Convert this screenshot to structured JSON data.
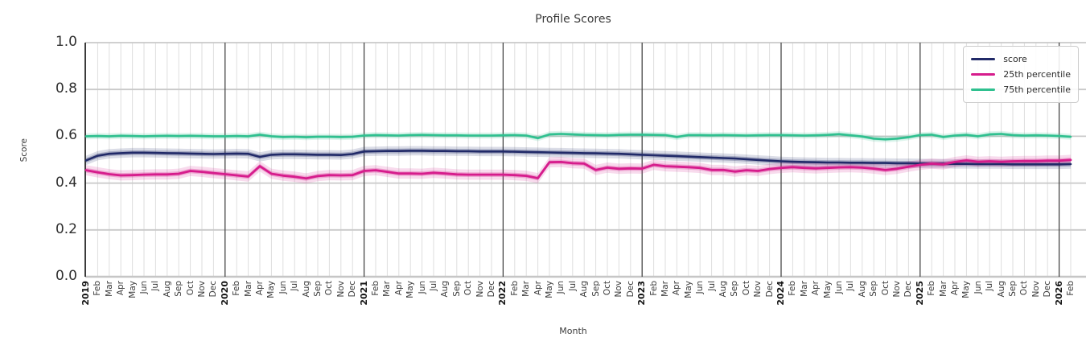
{
  "chart_data": {
    "type": "line",
    "title": "Profile Scores",
    "xlabel": "Month",
    "ylabel": "Score",
    "ylim": [
      0.0,
      1.0
    ],
    "ytick_labels": [
      "0.0",
      "0.2",
      "0.4",
      "0.6",
      "0.8",
      "1.0"
    ],
    "ytick_values": [
      0.0,
      0.2,
      0.4,
      0.6,
      0.8,
      1.0
    ],
    "grid": true,
    "legend_position": "upper right",
    "x_tick_labels": [
      "2019",
      "Feb",
      "Mar",
      "Apr",
      "May",
      "Jun",
      "Jul",
      "Aug",
      "Sep",
      "Oct",
      "Nov",
      "Dec",
      "2020",
      "Feb",
      "Mar",
      "Apr",
      "May",
      "Jun",
      "Jul",
      "Aug",
      "Sep",
      "Oct",
      "Nov",
      "Dec",
      "2021",
      "Feb",
      "Mar",
      "Apr",
      "May",
      "Jun",
      "Jul",
      "Aug",
      "Sep",
      "Oct",
      "Nov",
      "Dec",
      "2022",
      "Feb",
      "Mar",
      "Apr",
      "May",
      "Jun",
      "Jul",
      "Aug",
      "Sep",
      "Oct",
      "Nov",
      "Dec",
      "2023",
      "Feb",
      "Mar",
      "Apr",
      "May",
      "Jun",
      "Jul",
      "Aug",
      "Sep",
      "Oct",
      "Nov",
      "Dec",
      "2024",
      "Feb",
      "Mar",
      "Apr",
      "May",
      "Jun",
      "Jul",
      "Aug",
      "Sep",
      "Oct",
      "Nov",
      "Dec",
      "2025",
      "Feb",
      "Mar",
      "Apr",
      "May",
      "Jun",
      "Jul",
      "Aug",
      "Sep",
      "Oct",
      "Nov",
      "Dec",
      "2026",
      "Feb"
    ],
    "series": [
      {
        "name": "score",
        "color": "#212a68",
        "line_width": 2.6,
        "band_inner": 0.01,
        "band_outer": 0.02,
        "values": [
          0.497,
          0.517,
          0.525,
          0.528,
          0.53,
          0.53,
          0.529,
          0.528,
          0.527,
          0.526,
          0.525,
          0.524,
          0.525,
          0.526,
          0.525,
          0.512,
          0.521,
          0.523,
          0.523,
          0.522,
          0.521,
          0.521,
          0.52,
          0.524,
          0.535,
          0.536,
          0.537,
          0.537,
          0.538,
          0.538,
          0.537,
          0.537,
          0.536,
          0.536,
          0.535,
          0.535,
          0.535,
          0.534,
          0.533,
          0.532,
          0.531,
          0.53,
          0.529,
          0.528,
          0.527,
          0.526,
          0.525,
          0.523,
          0.521,
          0.519,
          0.517,
          0.515,
          0.513,
          0.511,
          0.509,
          0.507,
          0.505,
          0.502,
          0.499,
          0.496,
          0.493,
          0.491,
          0.49,
          0.489,
          0.488,
          0.488,
          0.487,
          0.487,
          0.486,
          0.486,
          0.485,
          0.485,
          0.484,
          0.483,
          0.483,
          0.482,
          0.482,
          0.481,
          0.481,
          0.481,
          0.48,
          0.48,
          0.48,
          0.48,
          0.48,
          0.481
        ]
      },
      {
        "name": "25th percentile",
        "color": "#d61c8c",
        "line_width": 2.8,
        "band_inner": 0.01,
        "band_outer": 0.022,
        "values": [
          0.455,
          0.446,
          0.438,
          0.433,
          0.434,
          0.436,
          0.437,
          0.437,
          0.44,
          0.452,
          0.448,
          0.443,
          0.438,
          0.433,
          0.428,
          0.472,
          0.44,
          0.432,
          0.427,
          0.42,
          0.43,
          0.434,
          0.433,
          0.434,
          0.452,
          0.455,
          0.448,
          0.441,
          0.441,
          0.44,
          0.444,
          0.441,
          0.437,
          0.436,
          0.436,
          0.436,
          0.436,
          0.434,
          0.431,
          0.421,
          0.489,
          0.49,
          0.485,
          0.483,
          0.456,
          0.466,
          0.461,
          0.463,
          0.462,
          0.478,
          0.472,
          0.47,
          0.468,
          0.465,
          0.456,
          0.456,
          0.449,
          0.455,
          0.452,
          0.46,
          0.465,
          0.468,
          0.465,
          0.463,
          0.465,
          0.467,
          0.468,
          0.466,
          0.462,
          0.456,
          0.461,
          0.47,
          0.478,
          0.483,
          0.48,
          0.49,
          0.497,
          0.491,
          0.493,
          0.491,
          0.493,
          0.494,
          0.494,
          0.496,
          0.496,
          0.499
        ]
      },
      {
        "name": "75th percentile",
        "color": "#2fc08f",
        "line_width": 2.6,
        "band_inner": 0.006,
        "band_outer": 0.013,
        "values": [
          0.6,
          0.601,
          0.6,
          0.602,
          0.601,
          0.6,
          0.601,
          0.602,
          0.601,
          0.602,
          0.601,
          0.6,
          0.6,
          0.601,
          0.6,
          0.607,
          0.6,
          0.597,
          0.598,
          0.596,
          0.598,
          0.598,
          0.597,
          0.598,
          0.603,
          0.605,
          0.604,
          0.603,
          0.605,
          0.606,
          0.605,
          0.604,
          0.604,
          0.603,
          0.603,
          0.603,
          0.604,
          0.605,
          0.603,
          0.592,
          0.608,
          0.61,
          0.608,
          0.606,
          0.605,
          0.604,
          0.606,
          0.607,
          0.607,
          0.606,
          0.605,
          0.597,
          0.605,
          0.605,
          0.604,
          0.605,
          0.604,
          0.603,
          0.604,
          0.605,
          0.605,
          0.604,
          0.603,
          0.604,
          0.606,
          0.609,
          0.604,
          0.599,
          0.59,
          0.587,
          0.59,
          0.596,
          0.605,
          0.607,
          0.597,
          0.603,
          0.606,
          0.6,
          0.608,
          0.61,
          0.605,
          0.603,
          0.604,
          0.603,
          0.601,
          0.598
        ]
      }
    ],
    "style": {
      "h_grid_color": "#c9c9c9",
      "month_grid_color": "#dedede",
      "year_grid_color": "#3a3a3a",
      "spine_color": "#262626",
      "baseline_color": "#c6c6c6"
    }
  }
}
